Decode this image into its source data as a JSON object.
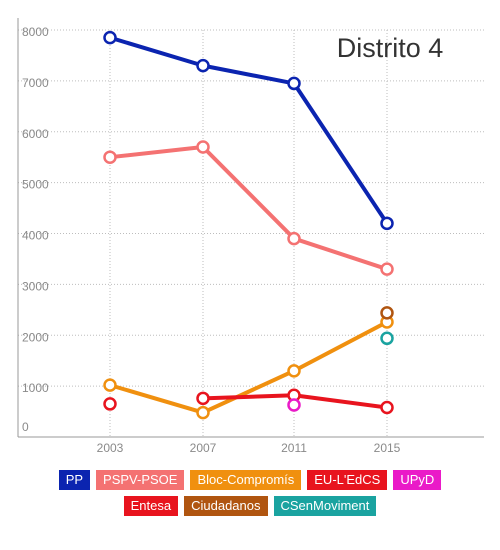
{
  "chart_data": {
    "type": "line",
    "title": "Distrito 4",
    "x": [
      "2003",
      "2007",
      "2011",
      "2015"
    ],
    "ylim": [
      0,
      8000
    ],
    "yticks": [
      "0",
      "1000",
      "2000",
      "3000",
      "4000",
      "5000",
      "6000",
      "7000",
      "8000"
    ],
    "grid": true,
    "legend_position": "bottom",
    "series": [
      {
        "name": "PP",
        "color": "#0b24b0",
        "values": [
          7850,
          7300,
          6950,
          4200
        ]
      },
      {
        "name": "PSPV-PSOE",
        "color": "#f47272",
        "values": [
          5500,
          5700,
          3900,
          3300
        ]
      },
      {
        "name": "Bloc-Compromís",
        "color": "#f0900f",
        "values": [
          1020,
          480,
          1300,
          2260
        ]
      },
      {
        "name": "EU-L'EdCS",
        "color": "#e8141e",
        "values": [
          null,
          760,
          820,
          580
        ]
      },
      {
        "name": "UPyD",
        "color": "#ea1ac8",
        "values": [
          null,
          null,
          630,
          null
        ]
      },
      {
        "name": "Entesa",
        "color": "#e8141e",
        "values": [
          650,
          null,
          null,
          null
        ]
      },
      {
        "name": "Ciudadanos",
        "color": "#b05510",
        "values": [
          null,
          null,
          null,
          2440
        ]
      },
      {
        "name": "CSenMoviment",
        "color": "#1aa3a0",
        "values": [
          null,
          null,
          null,
          1940
        ]
      }
    ],
    "legend_rows": [
      [
        "PP",
        "PSPV-PSOE",
        "Bloc-Compromís",
        "EU-L'EdCS",
        "UPyD"
      ],
      [
        "Entesa",
        "Ciudadanos",
        "CSenMoviment"
      ]
    ]
  }
}
